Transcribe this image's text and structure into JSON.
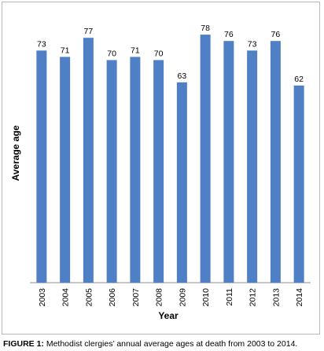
{
  "caption": {
    "label": "FIGURE 1:",
    "text": " Methodist clergies’ annual average ages at death from 2003 to 2014."
  },
  "chart_data": {
    "type": "bar",
    "categories": [
      "2003",
      "2004",
      "2005",
      "2006",
      "2007",
      "2008",
      "2009",
      "2010",
      "2011",
      "2012",
      "2013",
      "2014"
    ],
    "values": [
      73,
      71,
      77,
      70,
      71,
      70,
      63,
      78,
      76,
      73,
      76,
      62
    ],
    "data_labels": [
      "73",
      "71",
      "77",
      "70",
      "71",
      "70",
      "63",
      "78",
      "76",
      "73",
      "76",
      "62"
    ],
    "title": "",
    "xlabel": "Year",
    "ylabel": "Average age",
    "ylim": [
      0,
      80
    ],
    "grid": false,
    "legend": "none",
    "bar_color": "#4f7fc4"
  }
}
